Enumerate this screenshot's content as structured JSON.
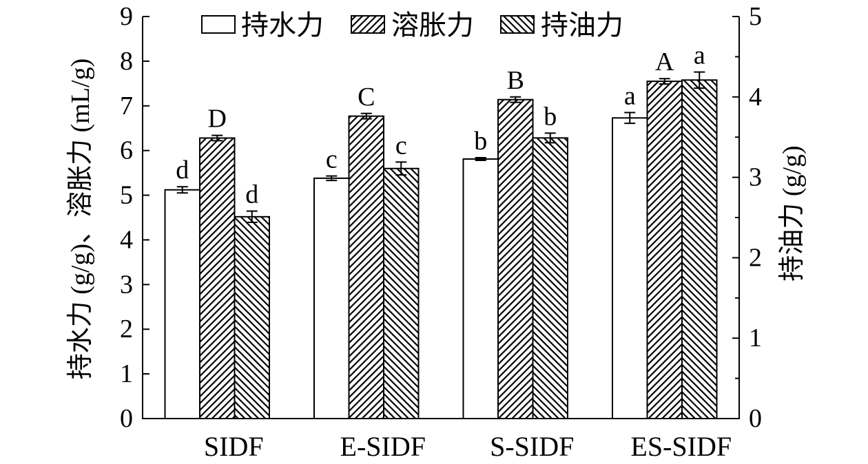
{
  "chart_data": {
    "type": "bar",
    "categories": [
      "SIDF",
      "E-SIDF",
      "S-SIDF",
      "ES-SIDF"
    ],
    "series": [
      {
        "name": "持水力",
        "axis": "left",
        "pattern": "none",
        "values": [
          5.12,
          5.38,
          5.81,
          6.73
        ],
        "errors": [
          0.07,
          0.05,
          0.03,
          0.12
        ],
        "letters": [
          "d",
          "c",
          "b",
          "a"
        ]
      },
      {
        "name": "溶胀力",
        "axis": "left",
        "pattern": "diagonal-forward",
        "values": [
          6.28,
          6.77,
          7.14,
          7.55
        ],
        "errors": [
          0.06,
          0.06,
          0.06,
          0.06
        ],
        "letters": [
          "D",
          "C",
          "B",
          "A"
        ]
      },
      {
        "name": "持油力",
        "axis": "right",
        "pattern": "diagonal-backward",
        "values": [
          2.51,
          3.11,
          3.49,
          4.21
        ],
        "errors": [
          0.07,
          0.08,
          0.06,
          0.1
        ],
        "letters": [
          "d",
          "c",
          "b",
          "a"
        ]
      }
    ],
    "ylabel": "持水力 (g/g)、溶胀力 (mL/g)",
    "ylabel_right": "持油力 (g/g)",
    "ylim": [
      0,
      9
    ],
    "ylim_right": [
      0,
      5
    ],
    "yticks": [
      0,
      1,
      2,
      3,
      4,
      5,
      6,
      7,
      8,
      9
    ],
    "yticks_right": [
      0,
      1,
      2,
      3,
      4,
      5
    ],
    "legend": "top-center",
    "grid": false,
    "colors": {
      "stroke": "#000000",
      "fill": "#ffffff"
    }
  }
}
